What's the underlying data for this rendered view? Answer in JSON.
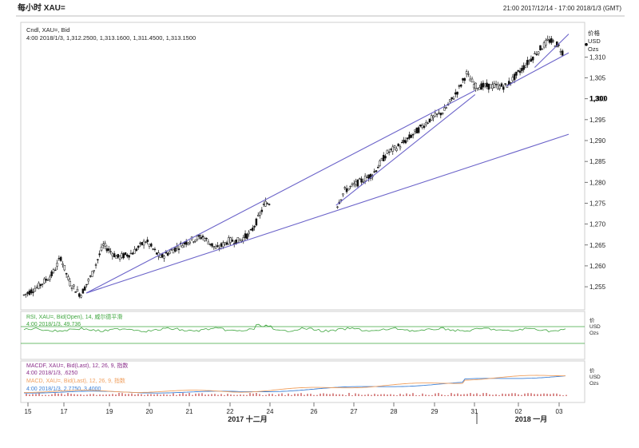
{
  "header": {
    "title": "每小时 XAU=",
    "range": "21:00 2017/12/14 - 17:00 2018/1/3 (GMT)"
  },
  "colors": {
    "candle": "#111111",
    "trendline": "#6b63c9",
    "rsi": "#3fa63f",
    "macd_signal": "#3a7fd6",
    "macd_line": "#f0a060",
    "histogram_neg": "#d98a8a",
    "axis_text": "#222222"
  },
  "chart_data": [
    {
      "type": "candlestick",
      "title": "Cndl, XAU=, Bid",
      "ohlc_label": "4:00 2018/1/3, 1,312.2500, 1,313.1600, 1,311.4500, 1,313.1500",
      "unit_label": [
        "价格",
        "USD",
        "Ozs"
      ],
      "last_price": "1,300",
      "x": [
        "15",
        "17",
        "19",
        "20",
        "21",
        "22",
        "24",
        "26",
        "27",
        "28",
        "29",
        "31",
        "02",
        "03"
      ],
      "x_group_labels": [
        "2017 十二月",
        "2018 一月"
      ],
      "yticks": [
        1255,
        1260,
        1265,
        1270,
        1275,
        1280,
        1285,
        1290,
        1295,
        1300,
        1305,
        1310
      ],
      "ylim": [
        1251,
        1316
      ],
      "approx_closes": [
        {
          "x": 15.0,
          "y": 1253
        },
        {
          "x": 15.5,
          "y": 1255
        },
        {
          "x": 16.0,
          "y": 1258
        },
        {
          "x": 16.3,
          "y": 1262
        },
        {
          "x": 16.6,
          "y": 1256
        },
        {
          "x": 17.0,
          "y": 1253
        },
        {
          "x": 17.4,
          "y": 1258
        },
        {
          "x": 17.8,
          "y": 1265
        },
        {
          "x": 18.3,
          "y": 1262
        },
        {
          "x": 18.8,
          "y": 1263
        },
        {
          "x": 19.3,
          "y": 1266
        },
        {
          "x": 19.8,
          "y": 1262
        },
        {
          "x": 20.3,
          "y": 1264
        },
        {
          "x": 20.8,
          "y": 1266
        },
        {
          "x": 21.3,
          "y": 1267
        },
        {
          "x": 21.8,
          "y": 1264
        },
        {
          "x": 22.2,
          "y": 1266
        },
        {
          "x": 22.6,
          "y": 1266
        },
        {
          "x": 23.0,
          "y": 1268
        },
        {
          "x": 23.3,
          "y": 1272
        },
        {
          "x": 23.5,
          "y": 1275
        },
        {
          "x": 23.7,
          "y": 1275
        },
        {
          "x": 26.0,
          "y": 1274
        },
        {
          "x": 26.3,
          "y": 1278
        },
        {
          "x": 26.8,
          "y": 1280
        },
        {
          "x": 27.3,
          "y": 1282
        },
        {
          "x": 27.8,
          "y": 1287
        },
        {
          "x": 28.3,
          "y": 1289
        },
        {
          "x": 28.8,
          "y": 1292
        },
        {
          "x": 29.3,
          "y": 1295
        },
        {
          "x": 29.8,
          "y": 1297
        },
        {
          "x": 30.3,
          "y": 1302
        },
        {
          "x": 30.6,
          "y": 1306
        },
        {
          "x": 30.9,
          "y": 1303
        },
        {
          "x": 32.0,
          "y": 1303
        },
        {
          "x": 32.4,
          "y": 1306
        },
        {
          "x": 32.8,
          "y": 1309
        },
        {
          "x": 33.2,
          "y": 1312
        },
        {
          "x": 33.5,
          "y": 1314
        },
        {
          "x": 33.8,
          "y": 1313
        },
        {
          "x": 34.0,
          "y": 1311
        }
      ]
    },
    {
      "type": "line",
      "title": "RSI, XAU=, Bid(Open), 14, 威尔德平滑",
      "value_label": "4:00 2018/1/3, 49.736",
      "unit_label": [
        "价",
        "USD",
        "Ozs"
      ]
    },
    {
      "type": "line",
      "title": "MACDF, XAU=, Bid(Last), 12, 26, 9, 指数",
      "value_label": "4:00 2018/1/3, .6250",
      "series": [
        {
          "name": "MACD, XAU=, Bid(Last), 12, 26, 9, 指数",
          "value_label": "4:00 2018/1/3, 2.7750, 3.4000"
        }
      ],
      "unit_label": [
        "价",
        "USD",
        "Ozs"
      ]
    }
  ]
}
